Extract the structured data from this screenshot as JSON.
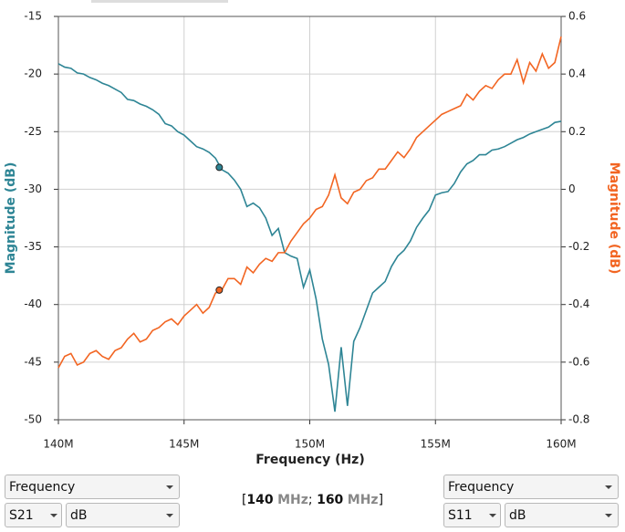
{
  "chart_data": {
    "type": "line",
    "xlabel": "Frequency (Hz)",
    "ylabel": "Magnitude (dB)",
    "y2label": "Magnitude (dB)",
    "x": [
      140000000,
      140250000,
      140500000,
      140750000,
      141000000,
      141250000,
      141500000,
      141750000,
      142000000,
      142250000,
      142500000,
      142750000,
      143000000,
      143250000,
      143500000,
      143750000,
      144000000,
      144250000,
      144500000,
      144750000,
      145000000,
      145250000,
      145500000,
      145750000,
      146000000,
      146250000,
      146500000,
      146750000,
      147000000,
      147250000,
      147500000,
      147750000,
      148000000,
      148250000,
      148500000,
      148750000,
      149000000,
      149250000,
      149500000,
      149750000,
      150000000,
      150250000,
      150500000,
      150750000,
      151000000,
      151250000,
      151500000,
      151750000,
      152000000,
      152250000,
      152500000,
      152750000,
      153000000,
      153250000,
      153500000,
      153750000,
      154000000,
      154250000,
      154500000,
      154750000,
      155000000,
      155250000,
      155500000,
      155750000,
      156000000,
      156250000,
      156500000,
      156750000,
      157000000,
      157250000,
      157500000,
      157750000,
      158000000,
      158250000,
      158500000,
      158750000,
      159000000,
      159250000,
      159500000,
      159750000,
      160000000
    ],
    "series": [
      {
        "name": "S21",
        "color": "#2e8595",
        "axis": "y",
        "values": [
          -19.1,
          -19.4,
          -19.5,
          -19.9,
          -20.0,
          -20.3,
          -20.5,
          -20.8,
          -21.0,
          -21.3,
          -21.6,
          -22.2,
          -22.3,
          -22.6,
          -22.8,
          -23.1,
          -23.5,
          -24.3,
          -24.5,
          -25.0,
          -25.3,
          -25.8,
          -26.3,
          -26.5,
          -26.8,
          -27.3,
          -28.3,
          -28.6,
          -29.2,
          -30.0,
          -31.5,
          -31.2,
          -31.6,
          -32.5,
          -34.0,
          -33.4,
          -35.5,
          -35.8,
          -36.0,
          -38.5,
          -37.0,
          -39.5,
          -43.0,
          -45.2,
          -49.3,
          -43.7,
          -48.8,
          -43.2,
          -42.0,
          -40.5,
          -39.0,
          -38.5,
          -38.0,
          -36.7,
          -35.8,
          -35.3,
          -34.5,
          -33.3,
          -32.5,
          -31.8,
          -30.5,
          -30.3,
          -30.2,
          -29.5,
          -28.5,
          -27.8,
          -27.5,
          -27.0,
          -27.0,
          -26.6,
          -26.5,
          -26.3,
          -26.0,
          -25.7,
          -25.5,
          -25.2,
          -25.0,
          -24.8,
          -24.6,
          -24.2,
          -24.1
        ],
        "marker": {
          "x": 146400000,
          "y": -28.1
        }
      },
      {
        "name": "S11",
        "color": "#f26522",
        "axis": "y2",
        "values": [
          -0.62,
          -0.58,
          -0.57,
          -0.61,
          -0.6,
          -0.57,
          -0.56,
          -0.58,
          -0.59,
          -0.56,
          -0.55,
          -0.52,
          -0.5,
          -0.53,
          -0.52,
          -0.49,
          -0.48,
          -0.46,
          -0.45,
          -0.47,
          -0.44,
          -0.42,
          -0.4,
          -0.43,
          -0.41,
          -0.36,
          -0.35,
          -0.31,
          -0.31,
          -0.33,
          -0.27,
          -0.29,
          -0.26,
          -0.24,
          -0.25,
          -0.22,
          -0.22,
          -0.18,
          -0.15,
          -0.12,
          -0.1,
          -0.07,
          -0.06,
          -0.02,
          0.05,
          -0.03,
          -0.05,
          -0.01,
          0.0,
          0.03,
          0.04,
          0.07,
          0.07,
          0.1,
          0.13,
          0.11,
          0.14,
          0.18,
          0.2,
          0.22,
          0.24,
          0.26,
          0.27,
          0.28,
          0.29,
          0.33,
          0.31,
          0.34,
          0.36,
          0.35,
          0.38,
          0.4,
          0.4,
          0.45,
          0.37,
          0.44,
          0.41,
          0.47,
          0.42,
          0.44,
          0.53
        ],
        "marker": {
          "x": 146400000,
          "y": -0.35
        }
      }
    ],
    "xlim": [
      140000000,
      160000000
    ],
    "xticks": [
      {
        "value": 140000000,
        "label": "140M"
      },
      {
        "value": 145000000,
        "label": "145M"
      },
      {
        "value": 150000000,
        "label": "150M"
      },
      {
        "value": 155000000,
        "label": "155M"
      },
      {
        "value": 160000000,
        "label": "160M"
      }
    ],
    "ylim": [
      -50,
      -15
    ],
    "yticks": [
      -15,
      -20,
      -25,
      -30,
      -35,
      -40,
      -45,
      -50
    ],
    "y2lim": [
      -0.8,
      0.6
    ],
    "y2ticks": [
      0.6,
      0.4,
      0.2,
      0,
      -0.2,
      -0.4,
      -0.6,
      -0.8
    ],
    "grid": true
  },
  "controls": {
    "left": {
      "x_axis": "Frequency",
      "parameter": "S21",
      "unit": "dB"
    },
    "right": {
      "x_axis": "Frequency",
      "parameter": "S11",
      "unit": "dB"
    },
    "range": {
      "open": "[",
      "start": "140",
      "start_unit": "MHz",
      "sep": ";",
      "end": "160",
      "end_unit": "MHz",
      "close": "]"
    }
  }
}
